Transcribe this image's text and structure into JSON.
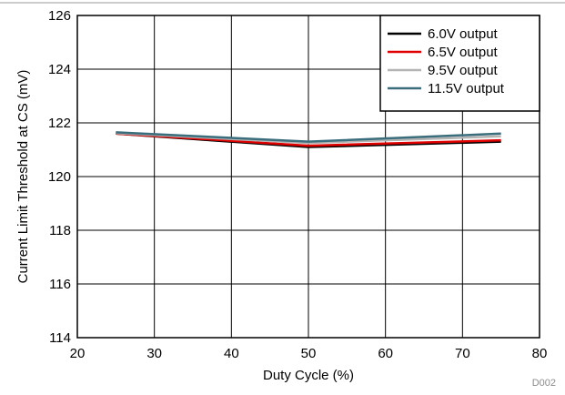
{
  "chart_data": {
    "type": "line",
    "xlabel": "Duty Cycle (%)",
    "ylabel": "Current Limit Threshold at CS (mV)",
    "xlim": [
      20,
      80
    ],
    "ylim": [
      114,
      126
    ],
    "xticks": [
      20,
      30,
      40,
      50,
      60,
      70,
      80
    ],
    "yticks": [
      114,
      116,
      118,
      120,
      122,
      124,
      126
    ],
    "grid": true,
    "legend_position": "top-right",
    "x": [
      25,
      50,
      75
    ],
    "series": [
      {
        "name": "6.0V output",
        "color": "#000000",
        "values": [
          121.6,
          121.1,
          121.3
        ]
      },
      {
        "name": "6.5V output",
        "color": "#e00000",
        "values": [
          121.6,
          121.15,
          121.35
        ]
      },
      {
        "name": "9.5V output",
        "color": "#b4b4b4",
        "values": [
          121.62,
          121.25,
          121.5
        ]
      },
      {
        "name": "11.5V output",
        "color": "#3b6e7d",
        "values": [
          121.65,
          121.3,
          121.6
        ]
      }
    ],
    "figure_code": "D002"
  }
}
